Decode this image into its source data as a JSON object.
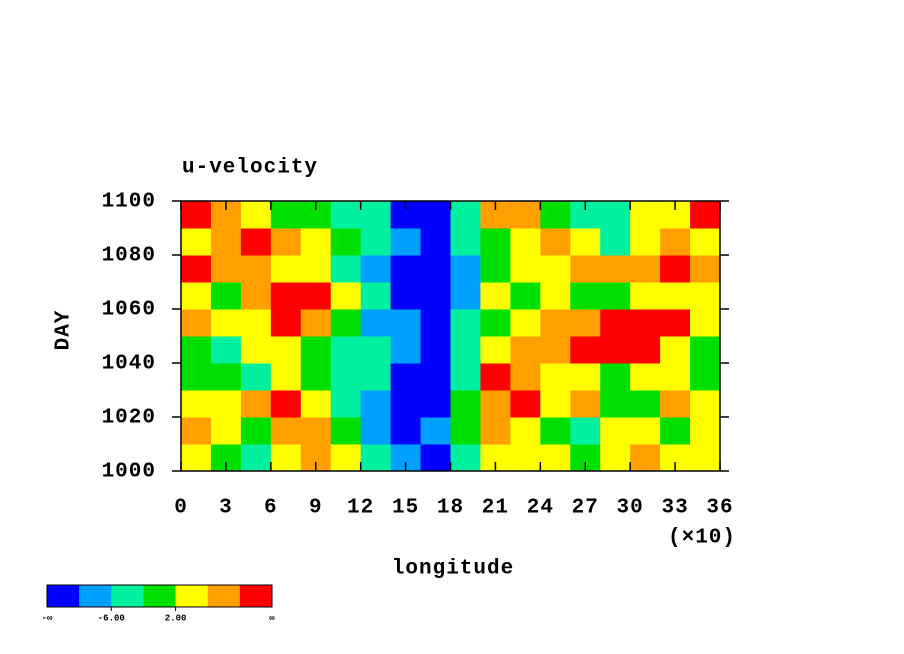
{
  "chart_data": {
    "type": "heatmap",
    "title": "u-velocity",
    "xlabel": "longitude",
    "x_scale_label": "(×10)",
    "ylabel": "DAY",
    "xlim": [
      0,
      36
    ],
    "xticks": [
      0,
      3,
      6,
      9,
      12,
      15,
      18,
      21,
      24,
      27,
      30,
      33,
      36
    ],
    "ylim": [
      1000,
      1100
    ],
    "yticks": [
      1000,
      1020,
      1040,
      1060,
      1080,
      1100
    ],
    "x": [
      1,
      3,
      5,
      7,
      9,
      11,
      13,
      15,
      17,
      19,
      21,
      23,
      25,
      27,
      29,
      31,
      33,
      35
    ],
    "y": [
      1005,
      1015,
      1025,
      1035,
      1045,
      1055,
      1065,
      1075,
      1085,
      1095
    ],
    "z": [
      [
        4,
        1,
        -3,
        5,
        8,
        2,
        -4,
        -8,
        -12,
        -6,
        3,
        5,
        2,
        -1,
        4,
        6,
        3,
        5
      ],
      [
        6,
        3,
        -1,
        9,
        7,
        -2,
        -7,
        -11,
        -9,
        0,
        8,
        4,
        1,
        -3,
        2,
        5,
        1,
        3
      ],
      [
        2,
        5,
        8,
        11,
        4,
        -3,
        -8,
        -11,
        -12,
        -1,
        9,
        12,
        3,
        6,
        -2,
        1,
        7,
        4
      ],
      [
        -2,
        1,
        -4,
        3,
        0,
        -5,
        -6,
        -11,
        -13,
        -3,
        11,
        7,
        5,
        2,
        -1,
        4,
        3,
        -2
      ],
      [
        0,
        -4,
        3,
        5,
        -1,
        -6,
        -3,
        -10,
        -12,
        -5,
        2,
        6,
        9,
        11,
        12,
        10,
        5,
        1
      ],
      [
        9,
        3,
        5,
        12,
        8,
        -1,
        -8,
        -10,
        -13,
        -4,
        1,
        3,
        8,
        6,
        11,
        13,
        12,
        4
      ],
      [
        3,
        1,
        7,
        13,
        11,
        4,
        -6,
        -11,
        -12,
        -7,
        2,
        -1,
        4,
        1,
        -2,
        3,
        5,
        2
      ],
      [
        11,
        8,
        6,
        4,
        2,
        -3,
        -9,
        -12,
        -13,
        -8,
        0,
        5,
        3,
        7,
        6,
        9,
        11,
        8
      ],
      [
        5,
        9,
        12,
        7,
        2,
        -1,
        -4,
        -10,
        -13,
        -6,
        1,
        2,
        6,
        4,
        -3,
        2,
        8,
        5
      ],
      [
        12,
        6,
        3,
        1,
        -2,
        -4,
        -5,
        -11,
        -12,
        -3,
        9,
        6,
        1,
        -6,
        -4,
        2,
        5,
        10
      ]
    ],
    "levels": [
      -10,
      -6,
      -2,
      2,
      6,
      10
    ],
    "colors": [
      "#0000ff",
      "#00a0ff",
      "#00f0a0",
      "#00e000",
      "#ffff00",
      "#ffa000",
      "#ff0000"
    ],
    "colorbar_ticks": [
      {
        "value": -6,
        "label": "-6.00"
      },
      {
        "value": 2,
        "label": "2.00"
      }
    ],
    "colorbar_end_labels": [
      "-∞",
      "∞"
    ]
  }
}
